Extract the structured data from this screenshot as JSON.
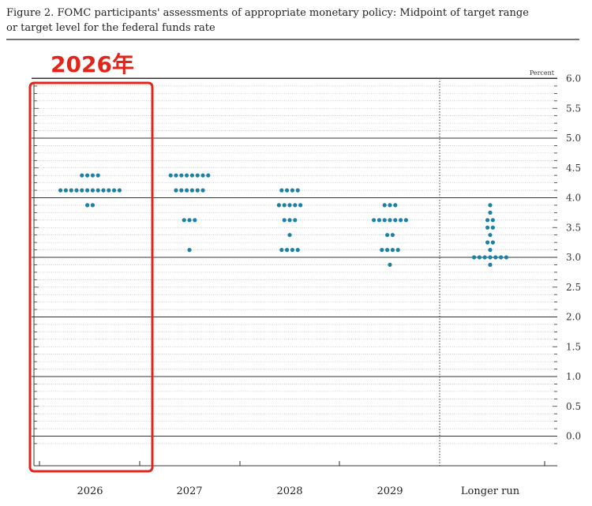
{
  "figure": {
    "title_line1": "Figure 2. FOMC participants' assessments of appropriate monetary policy: Midpoint of target range",
    "title_line2": "or target level for the federal funds rate"
  },
  "annotation": {
    "label": "2026年",
    "color": "#e3241b"
  },
  "colors": {
    "dot": "#1b7fa6",
    "axis": "#222222"
  },
  "chart_data": {
    "type": "scatter",
    "unit_label": "Percent",
    "ylim": [
      -0.25,
      6.125
    ],
    "y_ticks": [
      0.0,
      0.5,
      1.0,
      1.5,
      2.0,
      2.5,
      3.0,
      3.5,
      4.0,
      4.5,
      5.0,
      5.5,
      6.0
    ],
    "y_tick_labels": [
      "0.0",
      "0.5",
      "1.0",
      "1.5",
      "2.0",
      "2.5",
      "3.0",
      "3.5",
      "4.0",
      "4.5",
      "5.0",
      "5.5",
      "6.0"
    ],
    "grid": "dotted every 0.125, solid every 1.0",
    "categories": [
      "2026",
      "2027",
      "2028",
      "2029",
      "Longer run"
    ],
    "groups": [
      {
        "category": "2026",
        "dots": [
          {
            "y": 4.375,
            "count": 4
          },
          {
            "y": 4.125,
            "count": 12
          },
          {
            "y": 3.875,
            "count": 2
          }
        ]
      },
      {
        "category": "2027",
        "dots": [
          {
            "y": 4.375,
            "count": 8
          },
          {
            "y": 4.125,
            "count": 6
          },
          {
            "y": 3.625,
            "count": 3
          },
          {
            "y": 3.125,
            "count": 1
          }
        ]
      },
      {
        "category": "2028",
        "dots": [
          {
            "y": 4.125,
            "count": 4
          },
          {
            "y": 3.875,
            "count": 5
          },
          {
            "y": 3.625,
            "count": 3
          },
          {
            "y": 3.375,
            "count": 1
          },
          {
            "y": 3.125,
            "count": 4
          }
        ]
      },
      {
        "category": "2029",
        "dots": [
          {
            "y": 3.875,
            "count": 3
          },
          {
            "y": 3.625,
            "count": 7
          },
          {
            "y": 3.375,
            "count": 2
          },
          {
            "y": 3.125,
            "count": 4
          },
          {
            "y": 2.875,
            "count": 1
          }
        ]
      },
      {
        "category": "Longer run",
        "dots": [
          {
            "y": 3.875,
            "count": 1
          },
          {
            "y": 3.75,
            "count": 1
          },
          {
            "y": 3.625,
            "count": 2
          },
          {
            "y": 3.5,
            "count": 2
          },
          {
            "y": 3.375,
            "count": 1
          },
          {
            "y": 3.25,
            "count": 2
          },
          {
            "y": 3.125,
            "count": 1
          },
          {
            "y": 3.0,
            "count": 7
          },
          {
            "y": 2.875,
            "count": 1
          }
        ]
      }
    ],
    "highlighted_category": "2026",
    "separator_before": "Longer run"
  }
}
